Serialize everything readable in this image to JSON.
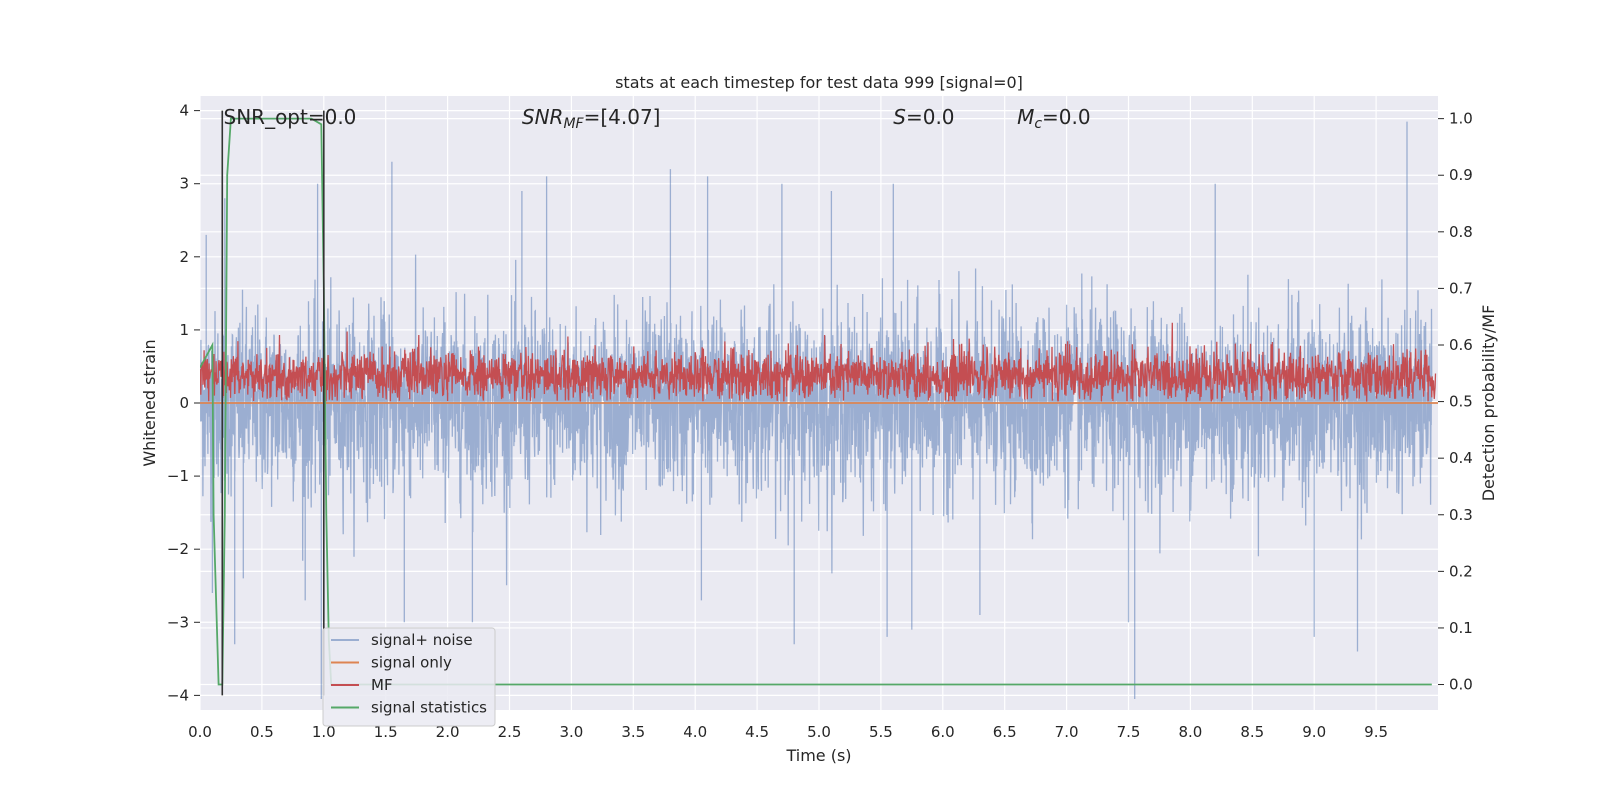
{
  "chart_data": {
    "type": "line",
    "title": "stats at each timestep for test data 999 [signal=0]",
    "xlabel": "Time (s)",
    "ylabel": "Whitened strain",
    "ylabel_right": "Detection probability/MF",
    "xlim": [
      0.0,
      10.0
    ],
    "ylim": [
      -4.2,
      4.2
    ],
    "ylim_right": [
      -0.045,
      1.04
    ],
    "xticks": [
      "0.0",
      "0.5",
      "1.0",
      "1.5",
      "2.0",
      "2.5",
      "3.0",
      "3.5",
      "4.0",
      "4.5",
      "5.0",
      "5.5",
      "6.0",
      "6.5",
      "7.0",
      "7.5",
      "8.0",
      "8.5",
      "9.0",
      "9.5"
    ],
    "yticks_left": [
      "4",
      "3",
      "2",
      "1",
      "0",
      "−1",
      "−2",
      "−3",
      "−4"
    ],
    "yticks_right": [
      "1.0",
      "0.9",
      "0.8",
      "0.7",
      "0.6",
      "0.5",
      "0.4",
      "0.3",
      "0.2",
      "0.1",
      "0.0"
    ],
    "grid": true,
    "legend_position": "lower-left",
    "annotations": [
      {
        "text": "SNR_opt=0.0",
        "x": 0.19
      },
      {
        "text": "SNR",
        "sub": "MF",
        "suffix": "=[4.07]",
        "x": 2.6
      },
      {
        "text": "S",
        "suffix": "=0.0",
        "x": 5.6
      },
      {
        "text": "M",
        "sub": "c",
        "suffix": "=0.0",
        "x": 6.6
      }
    ],
    "series": [
      {
        "name": "signal+ noise",
        "axis": "left",
        "color": "#4c72b0",
        "alpha": 0.5,
        "style": "noise",
        "envelope_approx": {
          "typical_range": [
            -1.5,
            1.6
          ],
          "max": 3.85,
          "min": -4.05
        },
        "spikes": [
          [
            0.05,
            2.3
          ],
          [
            0.1,
            -2.6
          ],
          [
            0.2,
            2.8
          ],
          [
            0.28,
            -3.3
          ],
          [
            0.35,
            -2.4
          ],
          [
            0.85,
            -2.7
          ],
          [
            0.95,
            3.0
          ],
          [
            0.98,
            -4.05
          ],
          [
            1.55,
            3.3
          ],
          [
            1.65,
            -3.0
          ],
          [
            2.2,
            -3.0
          ],
          [
            2.6,
            2.9
          ],
          [
            2.8,
            3.1
          ],
          [
            3.8,
            3.2
          ],
          [
            4.05,
            -2.7
          ],
          [
            4.1,
            3.1
          ],
          [
            4.7,
            3.0
          ],
          [
            4.8,
            -3.3
          ],
          [
            5.1,
            2.9
          ],
          [
            5.55,
            -3.2
          ],
          [
            5.6,
            3.0
          ],
          [
            5.75,
            -3.1
          ],
          [
            6.3,
            -2.9
          ],
          [
            7.5,
            -3.0
          ],
          [
            7.55,
            -4.05
          ],
          [
            8.2,
            3.0
          ],
          [
            9.0,
            -3.2
          ],
          [
            9.35,
            -3.4
          ],
          [
            9.75,
            3.85
          ]
        ]
      },
      {
        "name": "signal only",
        "axis": "left",
        "color": "#dd8452",
        "values_note": "zero everywhere",
        "x": [
          0.0,
          10.0
        ],
        "y": [
          0.0,
          0.0
        ]
      },
      {
        "name": "MF",
        "axis": "right",
        "color": "#c44e52",
        "style": "noise",
        "typical_range": [
          0.5,
          0.6
        ],
        "max": 0.65
      },
      {
        "name": "signal statistics",
        "axis": "right",
        "color": "#55a868",
        "x": [
          0.0,
          0.05,
          0.1,
          0.11,
          0.15,
          0.18,
          0.2,
          0.22,
          0.25,
          0.9,
          0.98,
          1.0,
          1.02,
          1.04,
          1.06,
          1.1,
          2.0,
          5.0,
          9.95
        ],
        "y": [
          0.56,
          0.58,
          0.6,
          0.3,
          0.0,
          0.0,
          0.3,
          0.9,
          1.0,
          1.0,
          0.99,
          0.7,
          0.3,
          0.08,
          0.0,
          0.0,
          0.0,
          0.0,
          0.0
        ]
      },
      {
        "name": "",
        "axis": "left",
        "color": "#333333",
        "style": "markers",
        "legend": false,
        "x": [
          0.18,
          1.0
        ],
        "y_range": [
          -4.0,
          4.0
        ]
      }
    ]
  }
}
